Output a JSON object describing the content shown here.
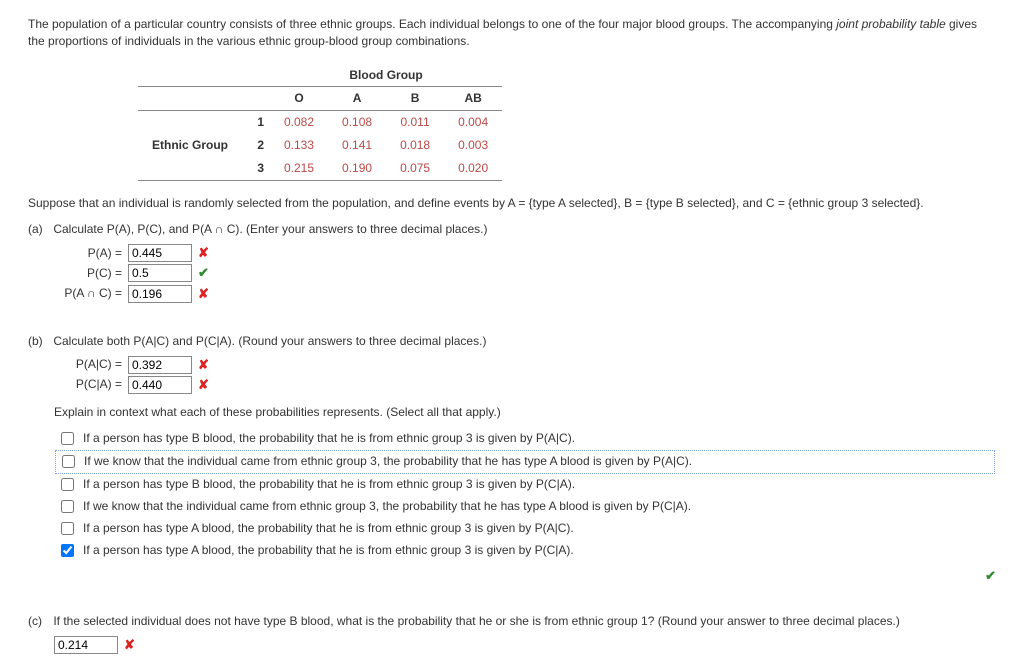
{
  "intro": {
    "text_a": "The population of a particular country consists of three ethnic groups. Each individual belongs to one of the four major blood groups. The accompanying ",
    "italic": "joint probability table",
    "text_b": " gives the proportions of individuals in the various ethnic group-blood group combinations."
  },
  "table": {
    "supertitle": "Blood Group",
    "col_headers": [
      "O",
      "A",
      "B",
      "AB"
    ],
    "row_label": "Ethnic Group",
    "row_headers": [
      "1",
      "2",
      "3"
    ],
    "cells": [
      [
        "0.082",
        "0.108",
        "0.011",
        "0.004"
      ],
      [
        "0.133",
        "0.141",
        "0.018",
        "0.003"
      ],
      [
        "0.215",
        "0.190",
        "0.075",
        "0.020"
      ]
    ]
  },
  "events_text": "Suppose that an individual is randomly selected from the population, and define events by A = {type A selected}, B = {type B selected}, and C = {ethnic group 3 selected}.",
  "part_a": {
    "label": "(a)",
    "prompt": "Calculate P(A), P(C), and P(A ∩ C). (Enter your answers to three decimal places.)",
    "rows": [
      {
        "label": "P(A)  =",
        "value": "0.445",
        "mark": "wrong"
      },
      {
        "label": "P(C)  =",
        "value": "0.5",
        "mark": "correct"
      },
      {
        "label": "P(A ∩ C)  =",
        "value": "0.196",
        "mark": "wrong"
      }
    ]
  },
  "part_b": {
    "label": "(b)",
    "prompt": "Calculate both P(A|C) and P(C|A). (Round your answers to three decimal places.)",
    "rows": [
      {
        "label": "P(A|C)  =",
        "value": "0.392",
        "mark": "wrong"
      },
      {
        "label": "P(C|A)  =",
        "value": "0.440",
        "mark": "wrong"
      }
    ],
    "explain": "Explain in context what each of these probabilities represents. (Select all that apply.)",
    "choices": [
      {
        "text": "If a person has type B blood, the probability that he is from ethnic group 3 is given by P(A|C).",
        "checked": false,
        "highlight": false
      },
      {
        "text": "If we know that the individual came from ethnic group 3, the probability that he has type A blood is given by P(A|C).",
        "checked": false,
        "highlight": true
      },
      {
        "text": "If a person has type B blood, the probability that he is from ethnic group 3 is given by P(C|A).",
        "checked": false,
        "highlight": false
      },
      {
        "text": "If we know that the individual came from ethnic group 3, the probability that he has type A blood is given by P(C|A).",
        "checked": false,
        "highlight": false
      },
      {
        "text": "If a person has type A blood, the probability that he is from ethnic group 3 is given by P(A|C).",
        "checked": false,
        "highlight": false
      },
      {
        "text": "If a person has type A blood, the probability that he is from ethnic group 3 is given by P(C|A).",
        "checked": true,
        "highlight": false
      }
    ],
    "choices_mark": "correct"
  },
  "part_c": {
    "label": "(c)",
    "prompt": "If the selected individual does not have type B blood, what is the probability that he or she is from ethnic group 1? (Round your answer to three decimal places.)",
    "value": "0.214",
    "mark": "wrong"
  }
}
